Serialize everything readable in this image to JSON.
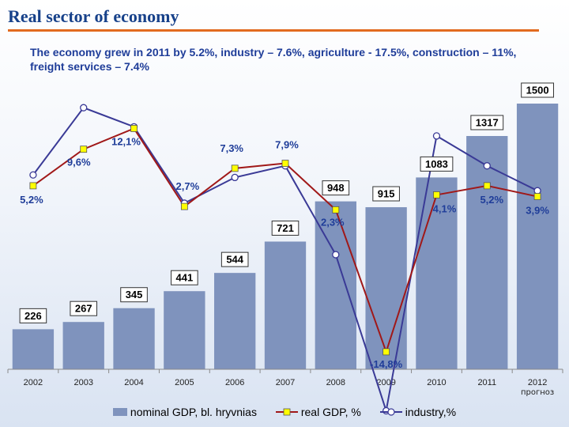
{
  "page": {
    "title": "Real sector of economy",
    "subtitle": "The economy grew in 2011 by 5.2%, industry – 7.6%, agriculture  - 17.5%, construction – 11%, freight services – 7.4%"
  },
  "colors": {
    "title": "#17418a",
    "rule": "#e26b1f",
    "bar": "#7f93bd",
    "gdp_line": "#a01818",
    "gdp_marker": "#ffff00",
    "industry_line": "#3a3a96",
    "industry_marker": "#ffffff",
    "label_text": "#1f3d99"
  },
  "chart_data": {
    "type": "bar",
    "categories": [
      "2002",
      "2003",
      "2004",
      "2005",
      "2006",
      "2007",
      "2008",
      "2009",
      "2010",
      "2011",
      "2012"
    ],
    "category_sublabels": [
      "",
      "",
      "",
      "",
      "",
      "",
      "",
      "",
      "",
      "",
      "прогноз"
    ],
    "bars": {
      "name": "nominal GDP, bl. hryvnias",
      "values": [
        226,
        267,
        345,
        441,
        544,
        721,
        948,
        915,
        1083,
        1317,
        1500
      ],
      "labels": [
        "226",
        "267",
        "345",
        "441",
        "544",
        "721",
        "948",
        "915",
        "1083",
        "1317",
        "1500"
      ],
      "ylim": [
        0,
        1500
      ]
    },
    "lines": [
      {
        "name": "real GDP, %",
        "values": [
          5.2,
          9.6,
          12.1,
          2.7,
          7.3,
          7.9,
          2.3,
          -14.8,
          4.1,
          5.2,
          3.9
        ],
        "labels": [
          "5,2%",
          "9,6%",
          "12,1%",
          "2,7%",
          "7,3%",
          "7,9%",
          "2,3%",
          "-14,8%",
          "4,1%",
          "5,2%",
          "3,9%"
        ]
      },
      {
        "name": "industry,%",
        "values": [
          6.5,
          14.6,
          12.3,
          3.1,
          6.2,
          7.6,
          -3.1,
          -21.9,
          11.2,
          7.6,
          4.6
        ]
      }
    ],
    "grid": false,
    "legend": "bottom"
  }
}
